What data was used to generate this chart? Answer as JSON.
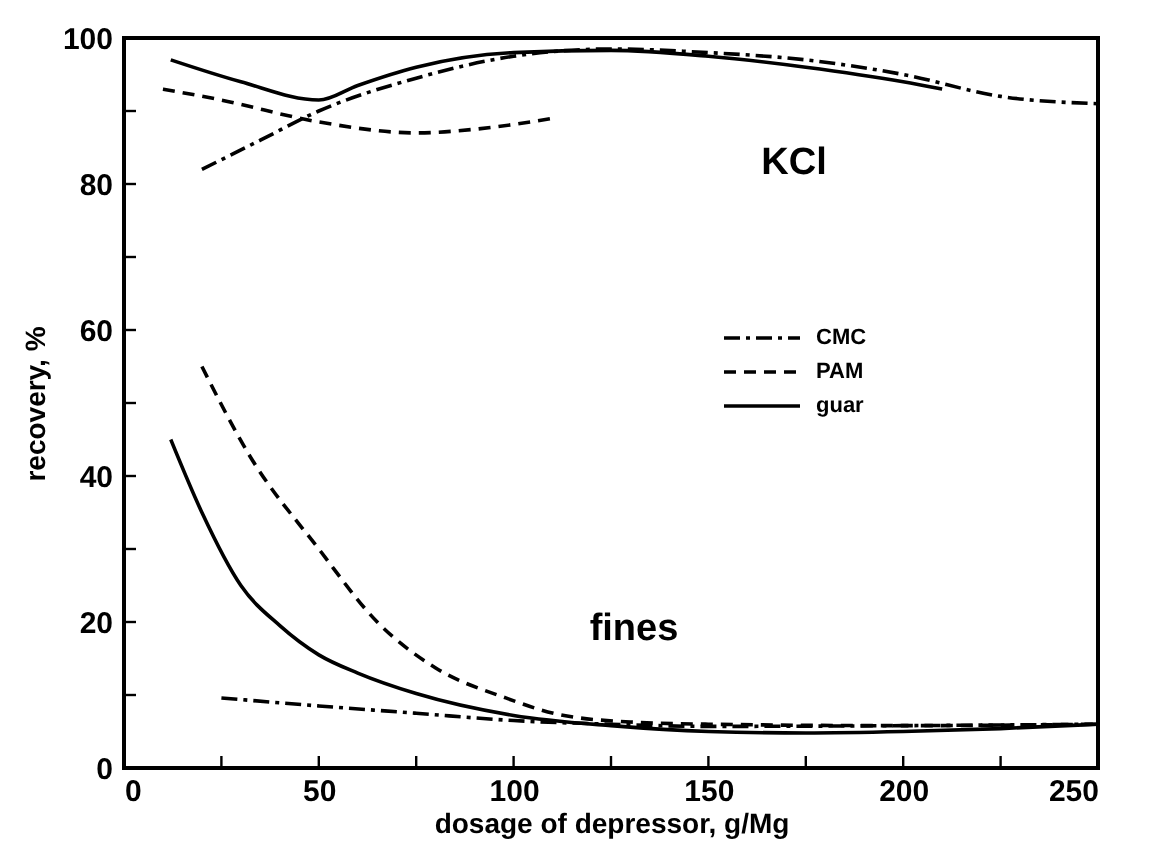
{
  "chart_data": {
    "type": "line",
    "xlabel": "dosage of depressor, g/Mg",
    "ylabel": "recovery, %",
    "xlim": [
      0,
      250
    ],
    "ylim": [
      0,
      100
    ],
    "xticks": [
      0,
      {
        "value": 25,
        "label": null
      },
      50,
      {
        "value": 75,
        "label": null
      },
      100,
      {
        "value": 125,
        "label": null
      },
      150,
      {
        "value": 175,
        "label": null
      },
      200,
      {
        "value": 225,
        "label": null
      },
      250
    ],
    "yticks": [
      0,
      {
        "value": 10,
        "label": null
      },
      20,
      {
        "value": 30,
        "label": null
      },
      40,
      {
        "value": 50,
        "label": null
      },
      60,
      {
        "value": 70,
        "label": null
      },
      80,
      {
        "value": 90,
        "label": null
      },
      100
    ],
    "legend": "right",
    "annotations": [
      "KCl",
      "fines"
    ],
    "series": [
      {
        "name": "CMC",
        "color": "#000000",
        "line_style": "dashdot",
        "x": [
          20,
          35,
          50,
          75,
          100,
          125,
          150,
          175,
          200,
          225,
          250
        ],
        "values": [
          82,
          86,
          90,
          94.5,
          97.5,
          98.5,
          98,
          97,
          95,
          92,
          91
        ]
      },
      {
        "name": "PAM",
        "color": "#000000",
        "line_style": "dashed",
        "x": [
          10,
          25,
          50,
          75,
          90,
          110
        ],
        "values": [
          93,
          91.5,
          88.5,
          87,
          87.5,
          89
        ]
      },
      {
        "name": "guar",
        "color": "#000000",
        "line_style": "solid",
        "x": [
          12,
          30,
          50,
          60,
          75,
          100,
          125,
          150,
          175,
          200,
          210
        ],
        "values": [
          97,
          94,
          91.5,
          93.5,
          96,
          98,
          98.3,
          97.5,
          96,
          94,
          93
        ]
      },
      {
        "color": "#000000",
        "line_style": "dashdot",
        "x": [
          25,
          50,
          75,
          100,
          125,
          150,
          200,
          250
        ],
        "values": [
          9.6,
          8.5,
          7.5,
          6.5,
          6,
          5.7,
          5.8,
          6
        ]
      },
      {
        "color": "#000000",
        "line_style": "dashed",
        "x": [
          20,
          32,
          50,
          65,
          80,
          98,
          111,
          130,
          150,
          200,
          250
        ],
        "values": [
          55,
          43,
          30,
          20,
          13.7,
          9.6,
          7.4,
          6.3,
          6,
          5.8,
          6
        ]
      },
      {
        "color": "#000000",
        "line_style": "solid",
        "x": [
          12,
          20,
          30,
          40,
          50,
          60,
          75,
          100,
          125,
          150,
          175,
          200,
          225,
          250
        ],
        "values": [
          45,
          35,
          25,
          19.5,
          15.5,
          13,
          10.2,
          7.2,
          5.8,
          5,
          4.8,
          5,
          5.4,
          6
        ]
      }
    ]
  }
}
